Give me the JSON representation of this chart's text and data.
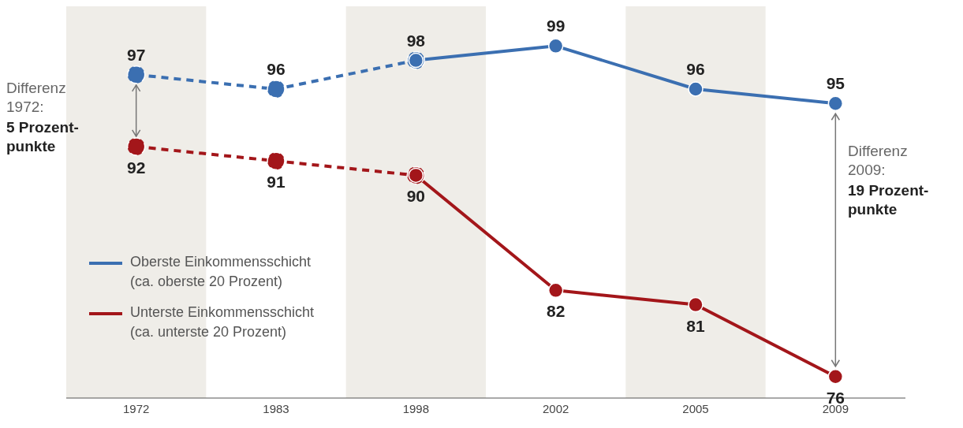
{
  "chart_data": {
    "type": "line",
    "categories": [
      "1972",
      "1983",
      "1998",
      "2002",
      "2005",
      "2009"
    ],
    "tick_labels": "x",
    "legend": "bottom left",
    "marker": "circle",
    "series": [
      {
        "color": "#3b6fb1",
        "line_style": "dashed",
        "values": [
          97,
          96,
          98,
          null,
          null,
          null
        ],
        "value_labels": [
          "97",
          "96",
          null,
          null,
          null,
          null
        ]
      },
      {
        "name": "Oberste Einkommensschicht\n(ca. oberste 20 Prozent)",
        "color": "#3b6fb1",
        "line_style": "solid",
        "values": [
          null,
          null,
          98,
          99,
          96,
          95
        ],
        "value_labels": [
          null,
          null,
          "98",
          "99",
          "96",
          "95"
        ]
      },
      {
        "color": "#a3161a",
        "line_style": "dashed",
        "values": [
          92,
          91,
          90,
          null,
          null,
          null
        ],
        "value_labels": [
          "92",
          "91",
          null,
          null,
          null,
          null
        ]
      },
      {
        "name": "Unterste Einkommensschicht\n(ca. unterste 20 Prozent)",
        "color": "#a3161a",
        "line_style": "solid",
        "values": [
          null,
          null,
          90,
          82,
          81,
          76
        ],
        "value_labels": [
          null,
          null,
          "90",
          "82",
          "81",
          "76"
        ]
      }
    ],
    "bands": [
      {
        "axis": "x",
        "from": "1972",
        "to": "1972",
        "color": "#efede8"
      },
      {
        "axis": "x",
        "from": "1998",
        "to": "1998",
        "color": "#efede8"
      },
      {
        "axis": "x",
        "from": "2005",
        "to": "2005",
        "color": "#efede8"
      }
    ],
    "annotations": [
      "Differenz\n1972:",
      "5 Prozent-\npunkte",
      "Differenz\n2009:",
      "19 Prozent-\npunkte"
    ]
  }
}
